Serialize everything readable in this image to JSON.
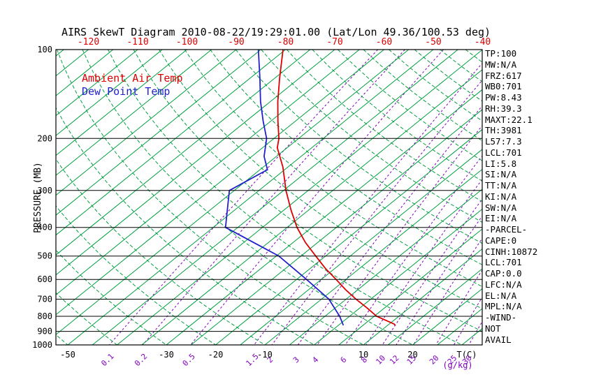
{
  "stats_panel": {
    "lines": [
      "TP:100",
      "MW:N/A",
      "FRZ:617",
      "WB0:701",
      "PW:8.43",
      "RH:39.3",
      "MAXT:22.1",
      "TH:3981",
      "L57:7.3",
      "LCL:701",
      "LI:5.8",
      "SI:N/A",
      "TT:N/A",
      "KI:N/A",
      "SW:N/A",
      "EI:N/A",
      "-PARCEL-",
      "CAPE:0",
      "CINH:10872",
      "LCL:701",
      "CAP:0.0",
      "LFC:N/A",
      "EL:N/A",
      "MPL:N/A",
      "-WIND-",
      "NOT",
      "AVAIL"
    ]
  },
  "chart_data": {
    "type": "line",
    "subtype": "skewt-log-p",
    "title": "AIRS SkewT Diagram 2010-08-22/19:29:01.00 (Lat/Lon 49.36/100.53 deg)",
    "pressure_levels_mb": [
      100,
      200,
      300,
      400,
      500,
      600,
      700,
      800,
      900,
      1000
    ],
    "top_temp_labels_c": [
      -120,
      -110,
      -100,
      -90,
      -80,
      -70,
      -60,
      -50,
      -40
    ],
    "bottom_temp_labels_c": [
      -50,
      -30,
      -20,
      -10,
      10,
      20
    ],
    "isotherms_c": {
      "start": -135,
      "end": 45,
      "step": 5
    },
    "dry_adiabats_c": {
      "start": -60,
      "end": 250,
      "step": 10
    },
    "mixing_ratio_lines_gkg": [
      0.1,
      0.2,
      0.5,
      1.5,
      2,
      3,
      4,
      6,
      8,
      10,
      12,
      15,
      20,
      25,
      30
    ],
    "axis": {
      "y_label": "PRESSURE (MB)",
      "x_label": "T(C)",
      "x_label2": "(g/kg)",
      "pressure_range_mb": [
        100,
        1000
      ],
      "grid": "skewt mesh: solid isotherms, dashed dry adiabats, dashed mixing-ratio lines",
      "legend_position": "top-left inside plot"
    },
    "colors": {
      "temperature": "#dd0000",
      "dewpoint": "#2222cc",
      "isotherm": "#00a040",
      "adiabat": "#00a040",
      "mixing": "#8000c0",
      "axis": "#000000"
    },
    "series": [
      {
        "name": "Ambient Air Temp",
        "color": "#dd0000",
        "units": {
          "pressure": "mb",
          "temperature": "C"
        },
        "points": [
          [
            100,
            -80.5
          ],
          [
            125,
            -74
          ],
          [
            150,
            -68.5
          ],
          [
            175,
            -63.5
          ],
          [
            200,
            -59
          ],
          [
            215,
            -57
          ],
          [
            250,
            -51
          ],
          [
            300,
            -44.5
          ],
          [
            350,
            -38.5
          ],
          [
            400,
            -33
          ],
          [
            450,
            -27.5
          ],
          [
            500,
            -22
          ],
          [
            550,
            -17
          ],
          [
            600,
            -12
          ],
          [
            650,
            -7.5
          ],
          [
            700,
            -3
          ],
          [
            750,
            1.5
          ],
          [
            800,
            5.5
          ],
          [
            850,
            11
          ],
          [
            858,
            11.5
          ]
        ]
      },
      {
        "name": "Dew Point Temp",
        "color": "#2222cc",
        "units": {
          "pressure": "mb",
          "temperature": "C"
        },
        "points": [
          [
            100,
            -85.5
          ],
          [
            125,
            -78
          ],
          [
            150,
            -72
          ],
          [
            175,
            -66.5
          ],
          [
            200,
            -61.5
          ],
          [
            230,
            -57.5
          ],
          [
            255,
            -53.5
          ],
          [
            300,
            -56
          ],
          [
            400,
            -47.5
          ],
          [
            500,
            -29.5
          ],
          [
            600,
            -18
          ],
          [
            700,
            -8.5
          ],
          [
            800,
            -2
          ],
          [
            858,
            1
          ]
        ]
      }
    ]
  }
}
